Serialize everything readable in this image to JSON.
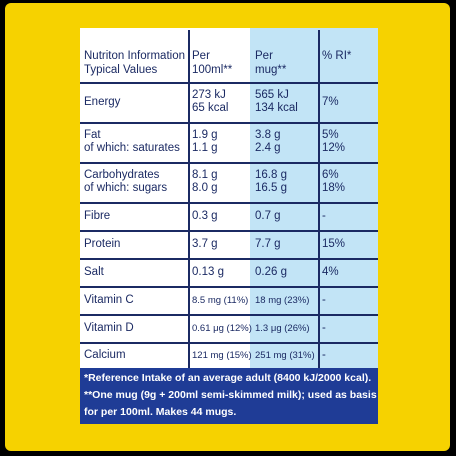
{
  "table": {
    "header": [
      [
        "Nutriton Information",
        "Typical Values"
      ],
      [
        "Per",
        "100ml**"
      ],
      [
        "Per",
        "mug**"
      ],
      [
        "% RI*"
      ]
    ],
    "rows": [
      [
        [
          "Energy"
        ],
        [
          "273 kJ",
          "65 kcal"
        ],
        [
          "565 kJ",
          "134 kcal"
        ],
        [
          "7%"
        ]
      ],
      [
        [
          "Fat",
          "of which: saturates"
        ],
        [
          "1.9 g",
          "1.1 g"
        ],
        [
          "3.8 g",
          "2.4 g"
        ],
        [
          "5%",
          "12%"
        ]
      ],
      [
        [
          "Carbohydrates",
          "of which: sugars"
        ],
        [
          "8.1 g",
          "8.0 g"
        ],
        [
          "16.8 g",
          "16.5 g"
        ],
        [
          "6%",
          "18%"
        ]
      ],
      [
        [
          "Fibre"
        ],
        [
          "0.3 g"
        ],
        [
          "0.7 g"
        ],
        [
          "-"
        ]
      ],
      [
        [
          "Protein"
        ],
        [
          "3.7 g"
        ],
        [
          "7.7 g"
        ],
        [
          "15%"
        ]
      ],
      [
        [
          "Salt"
        ],
        [
          "0.13 g"
        ],
        [
          "0.26 g"
        ],
        [
          "4%"
        ]
      ],
      [
        [
          "Vitamin C"
        ],
        [
          "8.5 mg (11%)"
        ],
        [
          "18 mg (23%)"
        ],
        [
          "-"
        ]
      ],
      [
        [
          "Vitamin D"
        ],
        [
          "0.61 μg (12%)"
        ],
        [
          "1.3 μg (26%)"
        ],
        [
          "-"
        ]
      ],
      [
        [
          "Calcium"
        ],
        [
          "121 mg (15%)"
        ],
        [
          "251 mg (31%)"
        ],
        [
          "-"
        ]
      ]
    ],
    "footnotes": [
      "*Reference Intake of an average adult  (8400 kJ/2000 kcal).",
      "**One mug (9g + 200ml semi-skimmed milk); used as basis",
      "for per 100ml. Makes 44 mugs."
    ]
  }
}
